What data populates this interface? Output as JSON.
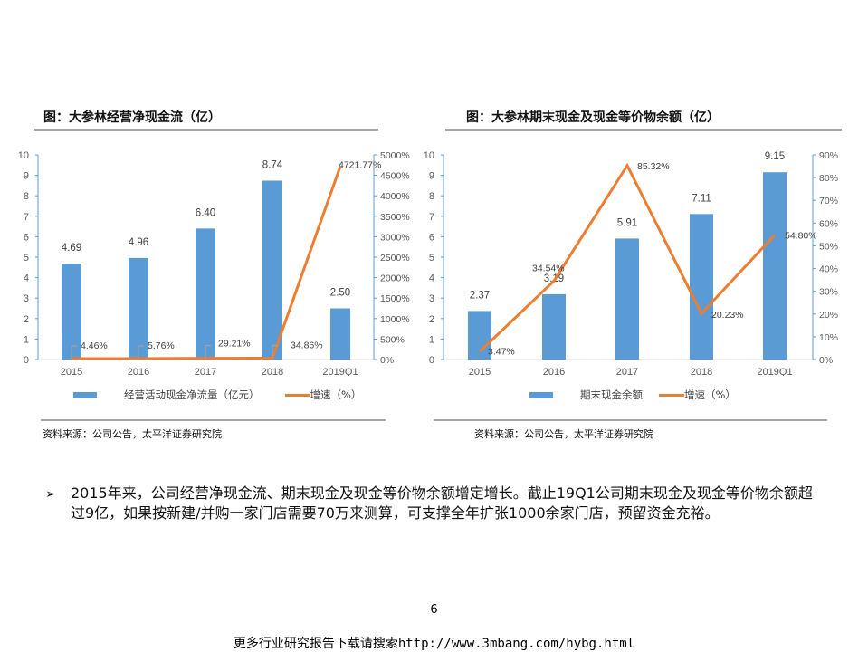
{
  "left_chart": {
    "title": "图：大参林经营净现金流（亿）",
    "source": "资料来源：公司公告，太平洋证券研究院",
    "legend": {
      "bar_label": "经营活动现金净流量（亿元）",
      "line_label": "增速（%）"
    },
    "left_ticks": [
      "0",
      "1",
      "2",
      "3",
      "4",
      "5",
      "6",
      "7",
      "8",
      "9",
      "10"
    ],
    "right_ticks": [
      "0%",
      "500%",
      "1000%",
      "1500%",
      "2000%",
      "2500%",
      "3000%",
      "3500%",
      "4000%",
      "4500%",
      "5000%"
    ],
    "categories": [
      "2015",
      "2016",
      "2017",
      "2018",
      "2019Q1"
    ],
    "bar_labels": [
      "4.69",
      "4.96",
      "6.40",
      "8.74",
      "2.50"
    ],
    "line_labels": [
      "4.46%",
      "5.76%",
      "29.21%",
      "34.86%",
      "4721.77%"
    ]
  },
  "right_chart": {
    "title": "图：大参林期末现金及现金等价物余额（亿）",
    "source": "资料来源：公司公告，太平洋证券研究院",
    "legend": {
      "bar_label": "期末现金余额",
      "line_label": "增速（%）"
    },
    "left_ticks": [
      "0",
      "1",
      "2",
      "3",
      "4",
      "5",
      "6",
      "7",
      "8",
      "9",
      "10"
    ],
    "right_ticks": [
      "0%",
      "10%",
      "20%",
      "30%",
      "40%",
      "50%",
      "60%",
      "70%",
      "80%",
      "90%"
    ],
    "categories": [
      "2015",
      "2016",
      "2017",
      "2018",
      "2019Q1"
    ],
    "bar_labels": [
      "2.37",
      "3.19",
      "5.91",
      "7.11",
      "9.15"
    ],
    "line_labels": [
      "3.47%",
      "34.54%",
      "85.32%",
      "20.23%",
      "54.80%"
    ]
  },
  "chart_data": [
    {
      "type": "bar+line",
      "title": "图：大参林经营净现金流（亿）",
      "categories": [
        "2015",
        "2016",
        "2017",
        "2018",
        "2019Q1"
      ],
      "series": [
        {
          "name": "经营活动现金净流量（亿元）",
          "type": "bar",
          "axis": "left",
          "values": [
            4.69,
            4.96,
            6.4,
            8.74,
            2.5
          ]
        },
        {
          "name": "增速（%）",
          "type": "line",
          "axis": "right",
          "values": [
            4.46,
            5.76,
            29.21,
            34.86,
            4721.77
          ]
        }
      ],
      "ylim_left": [
        0,
        10
      ],
      "ylim_right": [
        0,
        5000
      ],
      "legend_position": "bottom",
      "grid": false,
      "colors": {
        "bar": "#5b9bd5",
        "line": "#ed7d31"
      }
    },
    {
      "type": "bar+line",
      "title": "图：大参林期末现金及现金等价物余额（亿）",
      "categories": [
        "2015",
        "2016",
        "2017",
        "2018",
        "2019Q1"
      ],
      "series": [
        {
          "name": "期末现金余额",
          "type": "bar",
          "axis": "left",
          "values": [
            2.37,
            3.19,
            5.91,
            7.11,
            9.15
          ]
        },
        {
          "name": "增速（%）",
          "type": "line",
          "axis": "right",
          "values": [
            3.47,
            34.54,
            85.32,
            20.23,
            54.8
          ]
        }
      ],
      "ylim_left": [
        0,
        10
      ],
      "ylim_right": [
        0,
        90
      ],
      "legend_position": "bottom",
      "grid": false,
      "colors": {
        "bar": "#5b9bd5",
        "line": "#ed7d31"
      }
    }
  ],
  "bullet": {
    "symbol": "➢",
    "text": "2015年来，公司经营净现金流、期末现金及现金等价物余额增定增长。截止19Q1公司期末现金及现金等价物余额超过9亿，如果按新建/并购一家门店需要70万来测算，可支撑全年扩张1000余家门店，预留资金充裕。"
  },
  "page_number": "6",
  "footer": "更多行业研究报告下载请搜索http://www.3mbang.com/hybg.html"
}
